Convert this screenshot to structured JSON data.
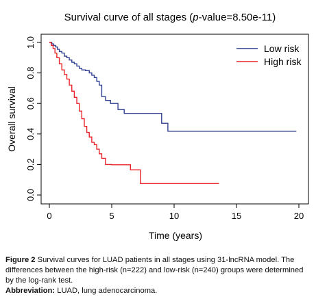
{
  "chart_data": {
    "type": "line",
    "title_prefix": "Survival curve of all stages (",
    "title_italic": "p",
    "title_suffix": "-value=8.50e-11)",
    "xlabel": "Time (years)",
    "ylabel": "Overall survival",
    "xlim": [
      0,
      20
    ],
    "ylim": [
      0,
      1
    ],
    "xticks": [
      "0",
      "5",
      "10",
      "15",
      "20"
    ],
    "yticks": [
      "0.0",
      "0.2",
      "0.4",
      "0.6",
      "0.8",
      "1.0"
    ],
    "legend_position": "top-right",
    "series": [
      {
        "name": "Low risk",
        "color": "#2f3f91",
        "x": [
          0,
          0.2,
          0.35,
          0.5,
          0.65,
          0.8,
          1.0,
          1.2,
          1.4,
          1.6,
          1.8,
          2.0,
          2.2,
          2.4,
          2.6,
          2.9,
          3.2,
          3.4,
          3.6,
          3.8,
          4.0,
          4.2,
          4.5,
          4.9,
          5.5,
          6.0,
          6.5,
          7.0,
          7.5,
          8.0,
          8.5,
          9.0,
          9.2,
          9.5,
          19.8
        ],
        "y": [
          1.0,
          0.99,
          0.98,
          0.97,
          0.955,
          0.94,
          0.93,
          0.91,
          0.9,
          0.885,
          0.87,
          0.86,
          0.845,
          0.83,
          0.82,
          0.815,
          0.8,
          0.785,
          0.77,
          0.745,
          0.72,
          0.645,
          0.62,
          0.6,
          0.56,
          0.535,
          0.535,
          0.535,
          0.535,
          0.535,
          0.535,
          0.47,
          0.47,
          0.418,
          0.418
        ]
      },
      {
        "name": "High risk",
        "color": "#e8242a",
        "x": [
          0,
          0.15,
          0.3,
          0.45,
          0.6,
          0.8,
          1.0,
          1.2,
          1.4,
          1.6,
          1.8,
          2.0,
          2.2,
          2.4,
          2.6,
          2.8,
          3.0,
          3.2,
          3.4,
          3.6,
          3.8,
          4.0,
          4.2,
          4.5,
          5.0,
          5.5,
          6.0,
          6.5,
          7.0,
          7.3,
          8.0,
          10.0,
          12.0,
          13.6
        ],
        "y": [
          1.0,
          0.98,
          0.96,
          0.93,
          0.9,
          0.86,
          0.82,
          0.79,
          0.76,
          0.72,
          0.68,
          0.64,
          0.6,
          0.55,
          0.5,
          0.45,
          0.41,
          0.38,
          0.345,
          0.33,
          0.3,
          0.27,
          0.24,
          0.2,
          0.198,
          0.198,
          0.198,
          0.165,
          0.165,
          0.075,
          0.075,
          0.075,
          0.075,
          0.075
        ]
      }
    ]
  },
  "caption": {
    "figure_label": "Figure 2",
    "figure_text": " Survival curves for LUAD patients in all stages using 31-lncRNA model. The differences between the high-risk (n=222) and low-risk (n=240) groups were determined by the log-rank test.",
    "abbr_label": "Abbreviation:",
    "abbr_text": " LUAD, lung adenocarcinoma."
  }
}
